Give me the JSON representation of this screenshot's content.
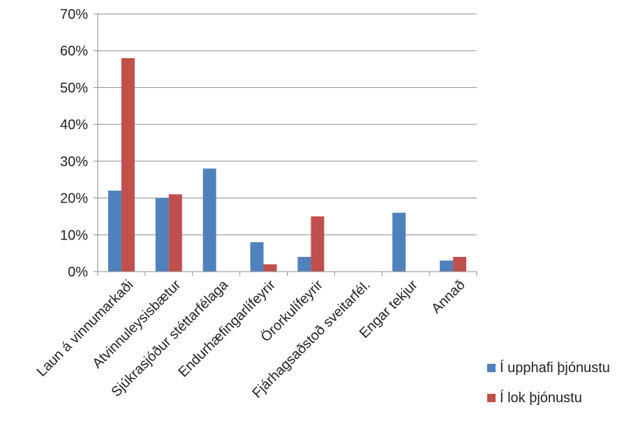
{
  "chart_data": {
    "type": "bar",
    "categories": [
      "Laun á vinnumarkaði",
      "Atvinnuleysisbætur",
      "Sjúkrasjóður stéttarfélaga",
      "Endurhæfingarlífeyrir",
      "Örorkulífeyrir",
      "Fjárhagsaðstoð sveitarfél.",
      "Engar tekjur",
      "Annað"
    ],
    "series": [
      {
        "name": "Í upphafi þjónustu",
        "color": "#4F81BD",
        "values": [
          22,
          20,
          28,
          8,
          4,
          0,
          16,
          3
        ]
      },
      {
        "name": "Í lok þjónustu",
        "color": "#C0504D",
        "values": [
          58,
          21,
          0,
          2,
          15,
          0,
          0,
          4
        ]
      }
    ],
    "y_ticks": [
      "0%",
      "10%",
      "20%",
      "30%",
      "40%",
      "50%",
      "60%",
      "70%"
    ],
    "ylim": [
      0,
      70
    ],
    "grid": true,
    "legend_position": "right"
  }
}
